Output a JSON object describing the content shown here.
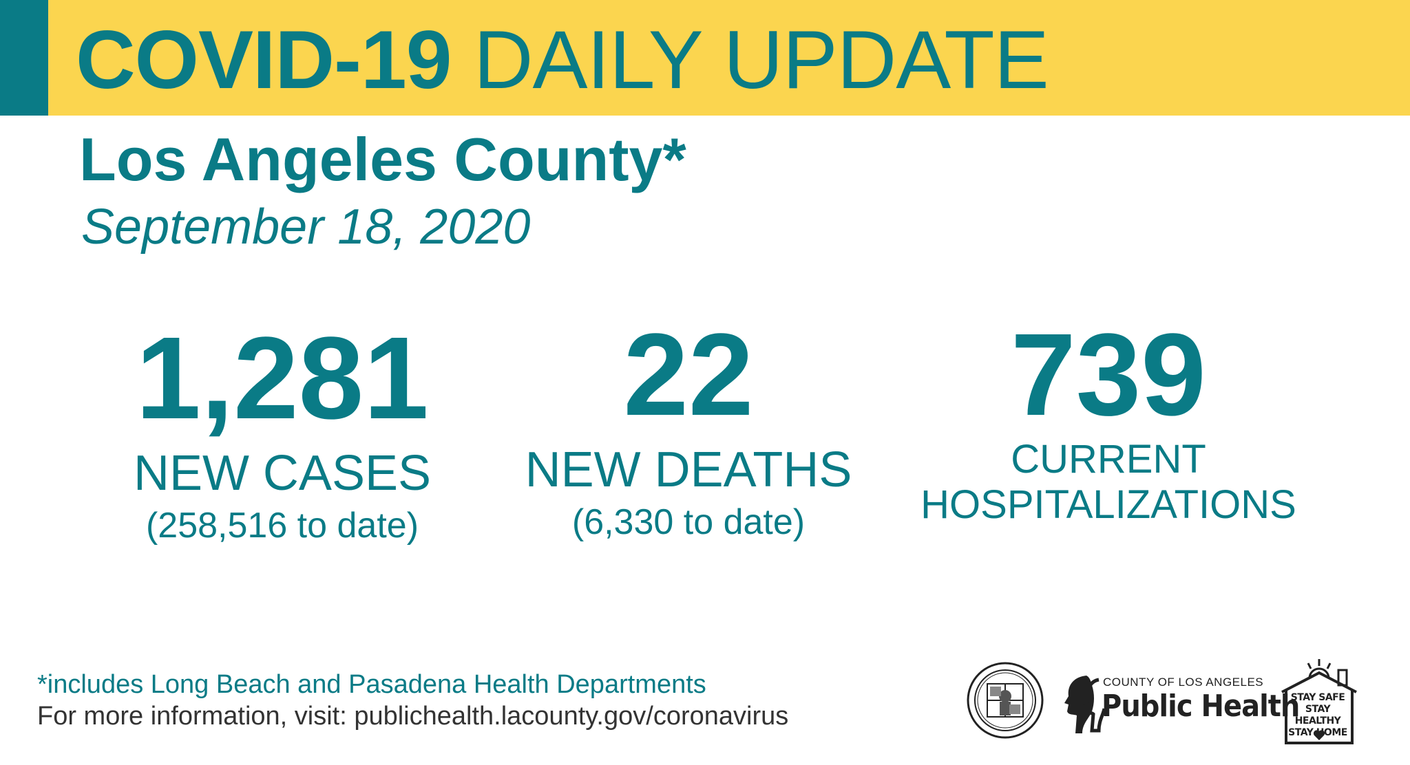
{
  "header": {
    "title_bold": "COVID-19",
    "title_light": "DAILY UPDATE"
  },
  "region": "Los Angeles County*",
  "date": "September 18, 2020",
  "stats": {
    "cases": {
      "value": "1,281",
      "label": "NEW CASES",
      "to_date": "(258,516 to date)"
    },
    "deaths": {
      "value": "22",
      "label": "NEW DEATHS",
      "to_date": "(6,330 to date)"
    },
    "hospitalizations": {
      "value": "739",
      "label_line1": "CURRENT",
      "label_line2": "HOSPITALIZATIONS"
    }
  },
  "footer": {
    "note": "*includes Long Beach and Pasadena Health Departments",
    "info": "For more information, visit: publichealth.lacounty.gov/coronavirus"
  },
  "logos": {
    "seal_icon": "county-seal-icon",
    "public_health_small": "COUNTY OF LOS ANGELES",
    "public_health_big": "Public Health",
    "stay_safe_lines": [
      "STAY SAFE",
      "STAY HEALTHY",
      "STAY HOME"
    ]
  },
  "colors": {
    "teal": "#0a7b86",
    "banner_yellow": "#fbd54f",
    "footer_text": "#333333"
  }
}
